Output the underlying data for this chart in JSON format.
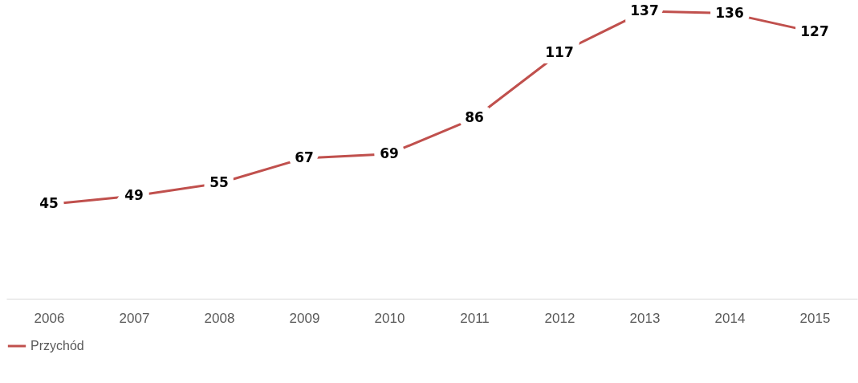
{
  "chart_data": {
    "type": "line",
    "categories": [
      "2006",
      "2007",
      "2008",
      "2009",
      "2010",
      "2011",
      "2012",
      "2013",
      "2014",
      "2015"
    ],
    "series": [
      {
        "name": "Przychód",
        "color": "#c0504d",
        "values": [
          45,
          49,
          55,
          67,
          69,
          86,
          117,
          137,
          136,
          127
        ]
      }
    ],
    "data_labels": true,
    "legend": "bottom",
    "grid": false,
    "line_style": "solid"
  }
}
